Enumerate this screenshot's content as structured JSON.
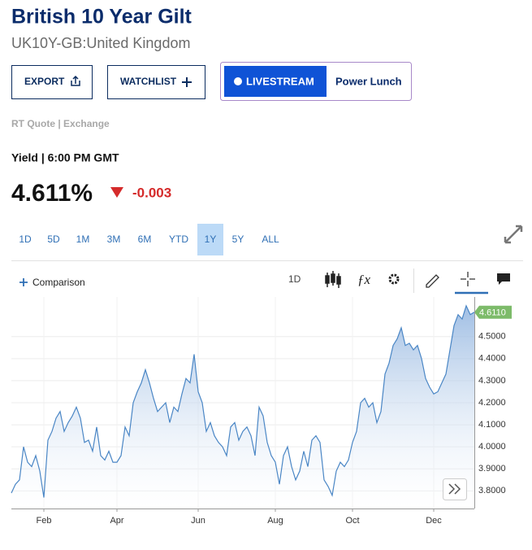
{
  "header": {
    "title": "British 10 Year Gilt",
    "subtitle": "UK10Y-GB:United Kingdom"
  },
  "buttons": [
    "EXPORT",
    "WATCHLIST"
  ],
  "livestream": {
    "label": "LIVESTREAM",
    "show": "Power Lunch"
  },
  "source": "RT Quote | Exchange",
  "quote": {
    "label": "Yield | 6:00 PM GMT",
    "last": "4.611%",
    "change": "-0.003"
  },
  "ranges": [
    "1D",
    "5D",
    "1M",
    "3M",
    "6M",
    "YTD",
    "1Y",
    "5Y",
    "ALL"
  ],
  "selected_range": 6,
  "toolbar": {
    "comparison": "Comparison",
    "interval": "1D"
  },
  "chart_data": {
    "type": "line",
    "series": [
      {
        "color": "#4a86c5",
        "values": [
          3.79,
          3.83,
          3.85,
          4.0,
          3.93,
          3.91,
          3.96,
          3.89,
          3.77,
          4.03,
          4.07,
          4.13,
          4.16,
          4.07,
          4.11,
          4.14,
          4.18,
          4.13,
          4.02,
          4.03,
          3.98,
          4.09,
          3.96,
          3.94,
          3.98,
          3.93,
          3.93,
          3.96,
          4.09,
          4.05,
          4.2,
          4.25,
          4.29,
          4.35,
          4.29,
          4.22,
          4.16,
          4.18,
          4.2,
          4.11,
          4.18,
          4.16,
          4.24,
          4.31,
          4.29,
          4.42,
          4.25,
          4.2,
          4.07,
          4.11,
          4.05,
          4.02,
          4.0,
          3.96,
          4.09,
          4.11,
          4.03,
          4.07,
          4.09,
          4.05,
          3.96,
          4.18,
          4.14,
          4.02,
          3.96,
          3.93,
          3.83,
          3.96,
          4.0,
          3.91,
          3.85,
          3.89,
          3.98,
          3.91,
          4.03,
          4.05,
          4.02,
          3.85,
          3.82,
          3.78,
          3.89,
          3.93,
          3.91,
          3.94,
          4.02,
          4.07,
          4.2,
          4.22,
          4.18,
          4.2,
          4.11,
          4.16,
          4.33,
          4.38,
          4.46,
          4.49,
          4.54,
          4.46,
          4.47,
          4.44,
          4.46,
          4.4,
          4.31,
          4.27,
          4.24,
          4.25,
          4.29,
          4.33,
          4.44,
          4.55,
          4.6,
          4.58,
          4.64,
          4.6,
          4.611
        ]
      }
    ],
    "xlim": [
      0,
      114
    ],
    "xticks": [
      {
        "value": 8,
        "label": "Feb"
      },
      {
        "value": 26,
        "label": "Apr"
      },
      {
        "value": 46,
        "label": "Jun"
      },
      {
        "value": 65,
        "label": "Aug"
      },
      {
        "value": 84,
        "label": "Oct"
      },
      {
        "value": 104,
        "label": "Dec"
      }
    ],
    "ylim": [
      3.72,
      4.68
    ],
    "yticks": [
      {
        "value": 3.8,
        "label": "3.8000"
      },
      {
        "value": 3.9,
        "label": "3.9000"
      },
      {
        "value": 4.0,
        "label": "4.0000"
      },
      {
        "value": 4.1,
        "label": "4.1000"
      },
      {
        "value": 4.2,
        "label": "4.2000"
      },
      {
        "value": 4.3,
        "label": "4.3000"
      },
      {
        "value": 4.4,
        "label": "4.4000"
      },
      {
        "value": 4.5,
        "label": "4.5000"
      }
    ],
    "last_label": "4.6110",
    "last_color": "#7dbb6a",
    "grid": true
  }
}
